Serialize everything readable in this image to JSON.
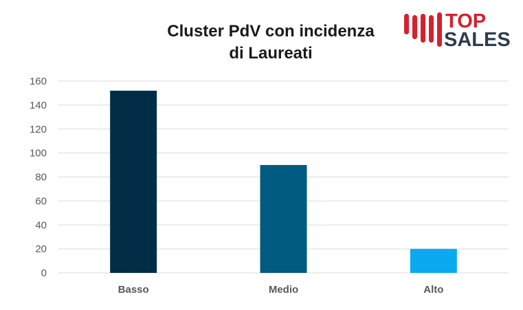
{
  "logo": {
    "line1": "TOP",
    "line2": "SALES",
    "color_red": "#d6202e",
    "color_navy": "#2f3c4f"
  },
  "chart_data": {
    "type": "bar",
    "title_lines": [
      "Cluster PdV con incidenza",
      "di Laureati"
    ],
    "categories": [
      "Basso",
      "Medio",
      "Alto"
    ],
    "values": [
      152,
      90,
      20
    ],
    "colors": [
      "#002d46",
      "#005a82",
      "#0aaaf0"
    ],
    "ylim": [
      0,
      160
    ],
    "yticks": [
      0,
      20,
      40,
      60,
      80,
      100,
      120,
      140,
      160
    ],
    "xlabel": "",
    "ylabel": "",
    "grid": true,
    "legend": "none"
  }
}
